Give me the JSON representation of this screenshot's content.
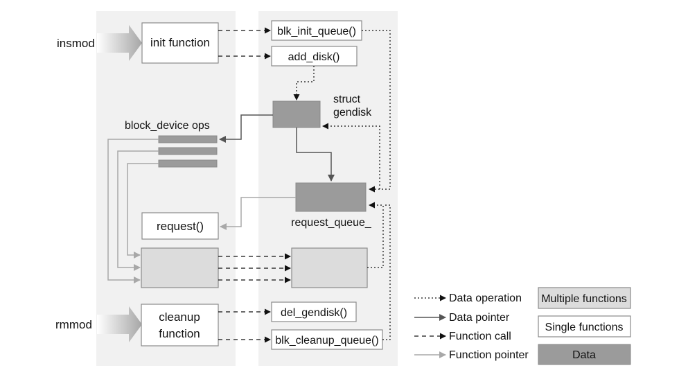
{
  "commands": {
    "insmod": "insmod",
    "rmmod": "rmmod"
  },
  "boxes": {
    "init_function": "init function",
    "blk_init_queue": "blk_init_queue()",
    "add_disk": "add_disk()",
    "struct_gendisk_line1": "struct",
    "struct_gendisk_line2": "gendisk",
    "block_device_ops": "block_device ops",
    "request": "request()",
    "request_queue": "request_queue_",
    "cleanup_function_line1": "cleanup",
    "cleanup_function_line2": "function",
    "del_gendisk": "del_gendisk()",
    "blk_cleanup_queue": "blk_cleanup_queue()"
  },
  "legend": {
    "lines": [
      "Data operation",
      "Data pointer",
      "Function call",
      "Function pointer"
    ],
    "boxes": [
      "Multiple functions",
      "Single functions",
      "Data"
    ]
  },
  "colors": {
    "panel": "#f1f1f1",
    "multiple_functions": "#dcdcdc",
    "single_functions": "#ffffff",
    "data": "#9b9b9b",
    "data_pointer_line": "#555555",
    "function_pointer_line": "#a8a8a8"
  }
}
